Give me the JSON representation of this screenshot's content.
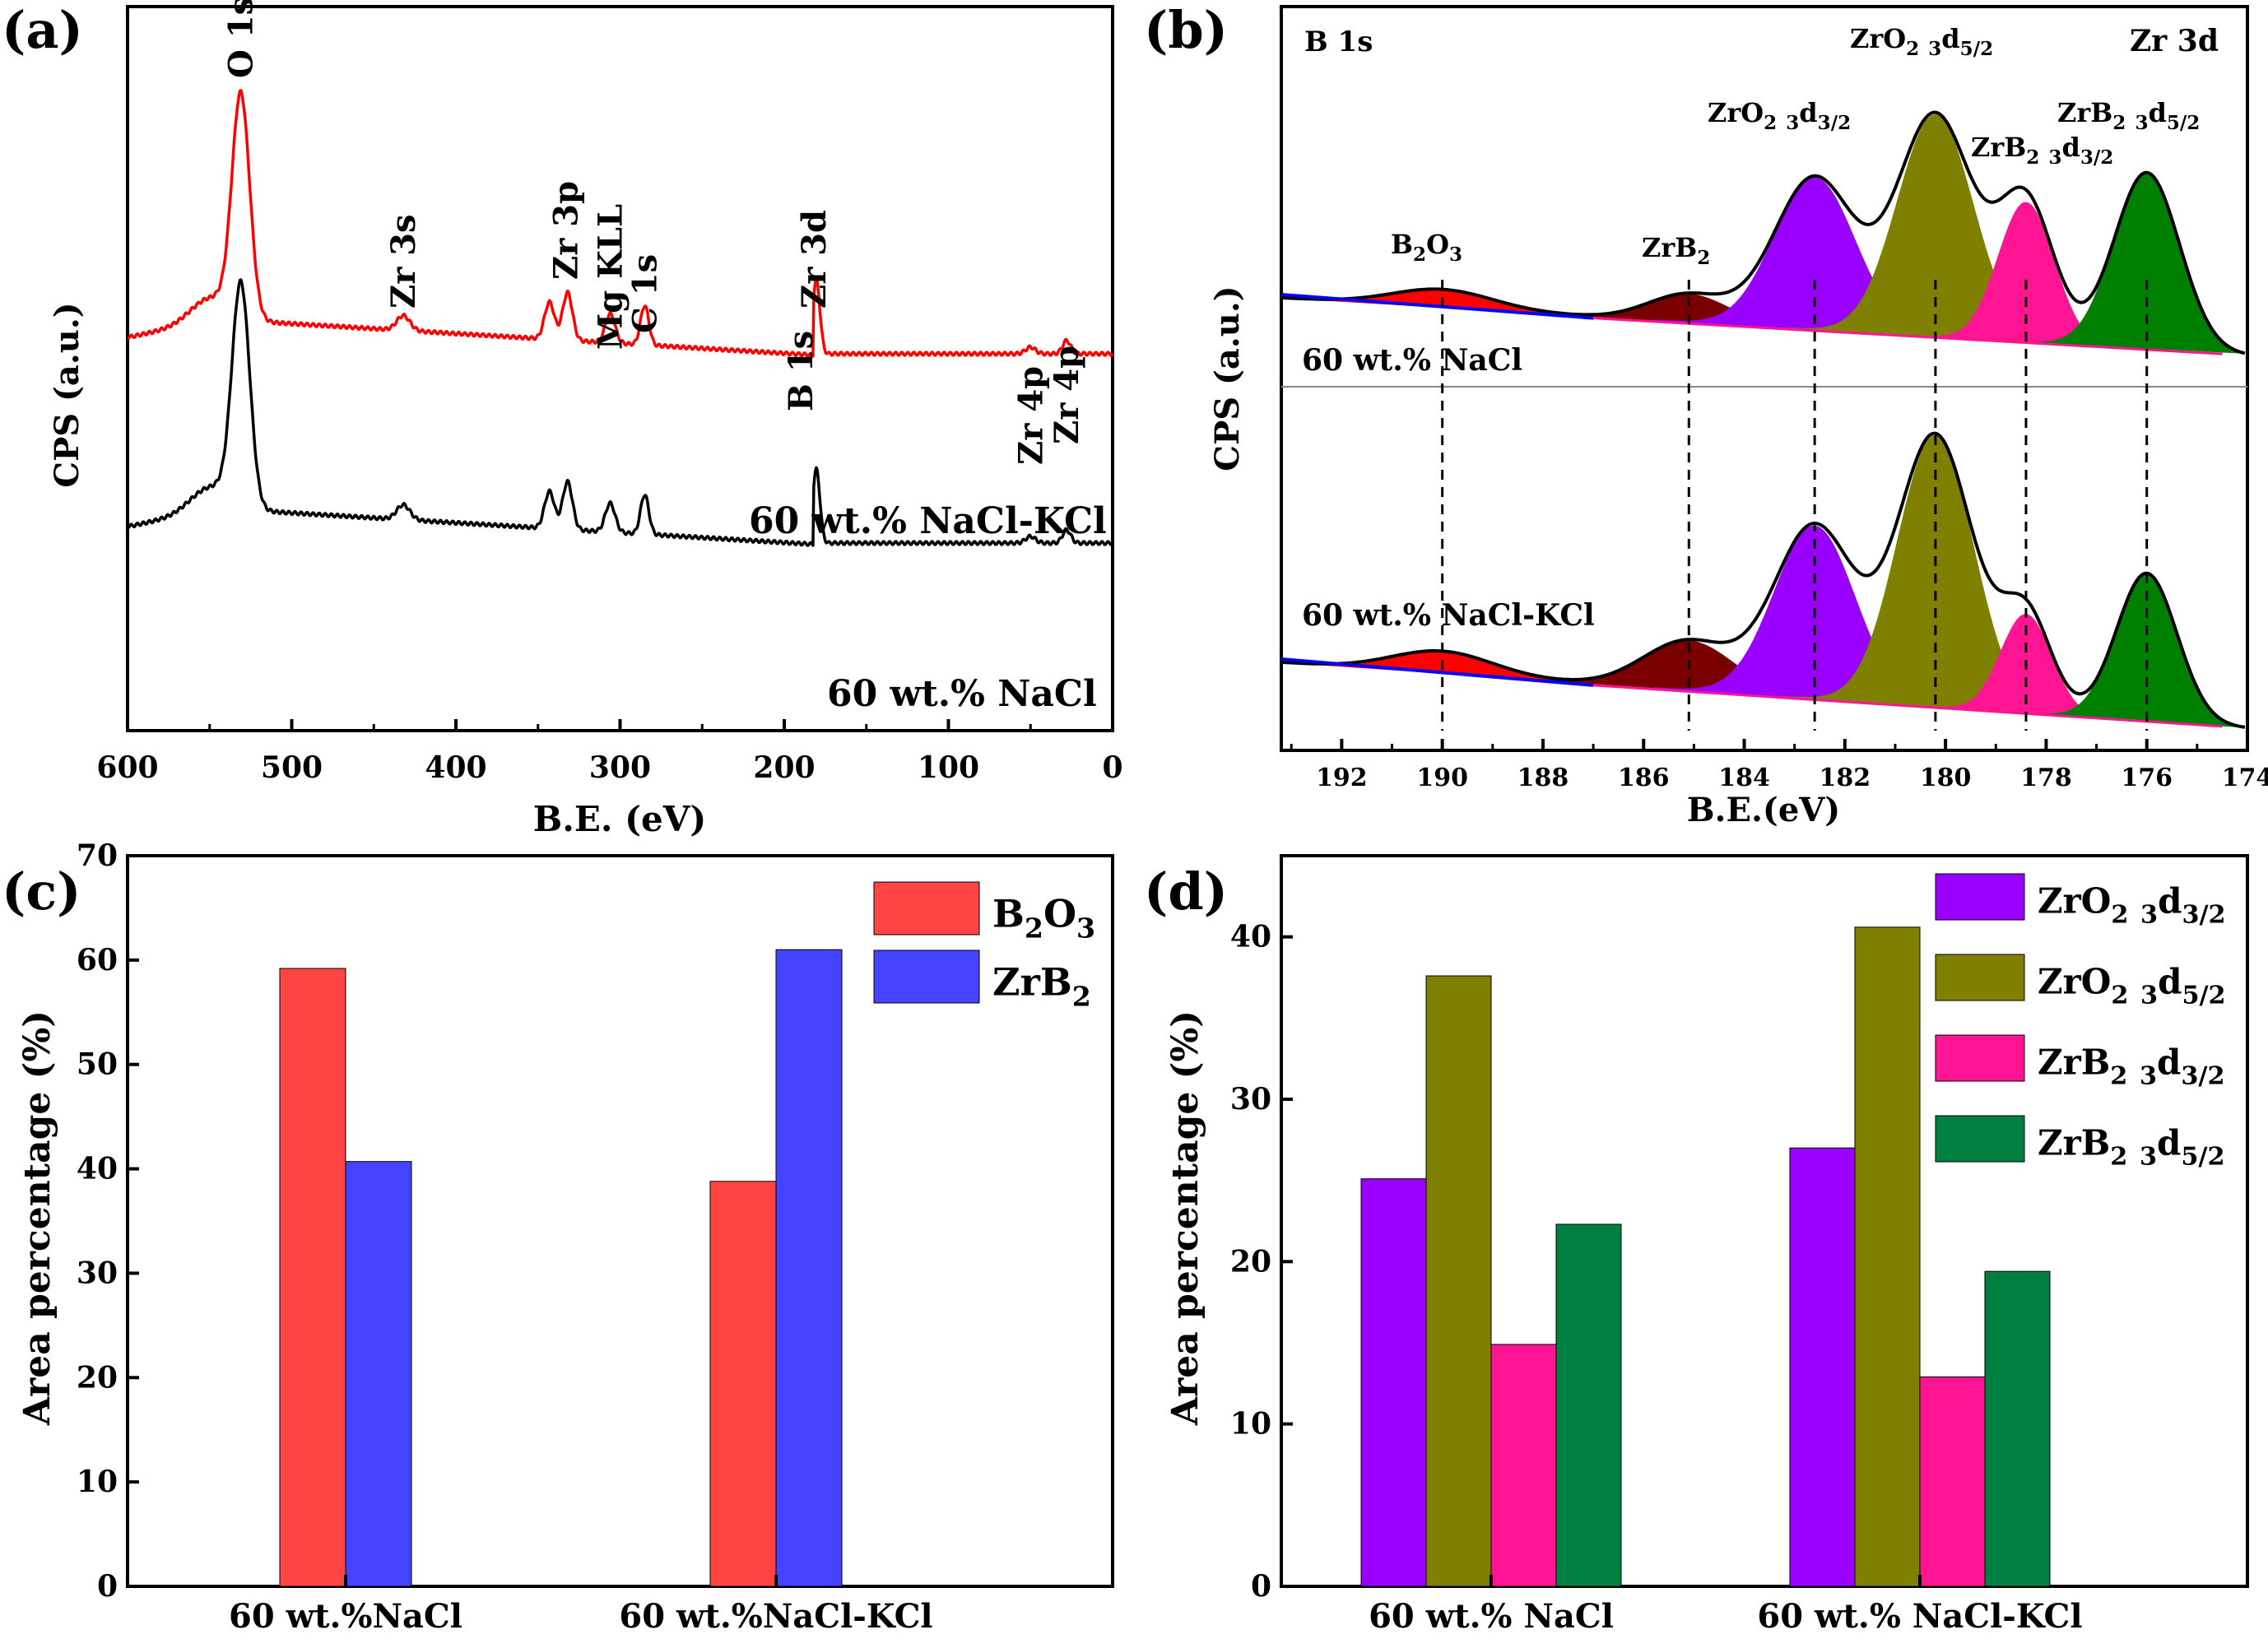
{
  "panels": {
    "a": {
      "label": "(a)"
    },
    "b": {
      "label": "(b)"
    },
    "c": {
      "label": "(c)"
    },
    "d": {
      "label": "(d)"
    }
  },
  "chart_data": [
    {
      "id": "a",
      "type": "line",
      "xlabel": "B.E. (eV)",
      "ylabel": "CPS (a.u.)",
      "xlim": [
        600,
        0
      ],
      "x_ticks": [
        "600",
        "500",
        "400",
        "300",
        "200",
        "100",
        "0"
      ],
      "series": [
        {
          "name": "60 wt.% NaCl-KCl",
          "color": "#ff0000"
        },
        {
          "name": "60 wt.% NaCl",
          "color": "#000000"
        }
      ],
      "peaks": [
        {
          "label": "O 1s",
          "x": 531
        },
        {
          "label": "Zr 3s",
          "x": 432
        },
        {
          "label": "Zr 3p",
          "x": 333
        },
        {
          "label": "Mg KLL",
          "x": 306
        },
        {
          "label": "C 1s",
          "x": 285
        },
        {
          "label": "B 1s",
          "x": 190
        },
        {
          "label": "Zr 3d",
          "x": 182
        },
        {
          "label": "Zr 4p",
          "x": 50
        },
        {
          "label": "Zr 4p",
          "x": 28
        }
      ]
    },
    {
      "id": "b",
      "type": "line",
      "xlabel": "B.E.(eV)",
      "ylabel": "CPS (a.u.)",
      "xlim": [
        193.2,
        174
      ],
      "x_ticks": [
        "192",
        "190",
        "188",
        "186",
        "184",
        "182",
        "180",
        "178",
        "176",
        "174"
      ],
      "region_labels": [
        "B 1s",
        "Zr 3d"
      ],
      "samples": [
        "60 wt.% NaCl",
        "60 wt.% NaCl-KCl"
      ],
      "components": [
        {
          "name": "B2O3",
          "center": 190.0,
          "color": "#ff0000"
        },
        {
          "name": "ZrB2",
          "center": 185.1,
          "color": "#7a0000"
        },
        {
          "name": "ZrO2 3d3/2",
          "center": 182.6,
          "color": "#9900ff"
        },
        {
          "name": "ZrO2 3d5/2",
          "center": 180.2,
          "color": "#808000"
        },
        {
          "name": "ZrB2 3d3/2",
          "center": 178.4,
          "color": "#ff1493"
        },
        {
          "name": "ZrB2 3d5/2",
          "center": 176.0,
          "color": "#008000"
        }
      ],
      "dashed_lines": [
        190.0,
        185.1,
        182.6,
        180.2,
        178.4,
        176.0
      ]
    },
    {
      "id": "c",
      "type": "bar",
      "ylabel": "Area percentage (%)",
      "ylim": [
        0,
        70
      ],
      "y_ticks": [
        "0",
        "10",
        "20",
        "30",
        "40",
        "50",
        "60",
        "70"
      ],
      "categories": [
        "60 wt.%NaCl",
        "60 wt.%NaCl-KCl"
      ],
      "series": [
        {
          "name": "B2O3",
          "color": "#ff4444",
          "values": [
            59.2,
            38.8
          ]
        },
        {
          "name": "ZrB2",
          "color": "#4444ff",
          "values": [
            40.7,
            61.0
          ]
        }
      ]
    },
    {
      "id": "d",
      "type": "bar",
      "ylabel": "Area percentage (%)",
      "ylim": [
        0,
        45
      ],
      "y_ticks": [
        "0",
        "10",
        "20",
        "30",
        "40"
      ],
      "categories": [
        "60 wt.% NaCl",
        "60 wt.% NaCl-KCl"
      ],
      "series": [
        {
          "name": "ZrO2 3d3/2",
          "color": "#9900ff",
          "values": [
            25.1,
            27.0
          ]
        },
        {
          "name": "ZrO2 3d5/2",
          "color": "#808000",
          "values": [
            37.6,
            40.6
          ]
        },
        {
          "name": "ZrB2 3d3/2",
          "color": "#ff1493",
          "values": [
            14.9,
            12.9
          ]
        },
        {
          "name": "ZrB2 3d5/2",
          "color": "#008040",
          "values": [
            22.3,
            19.4
          ]
        }
      ]
    }
  ]
}
